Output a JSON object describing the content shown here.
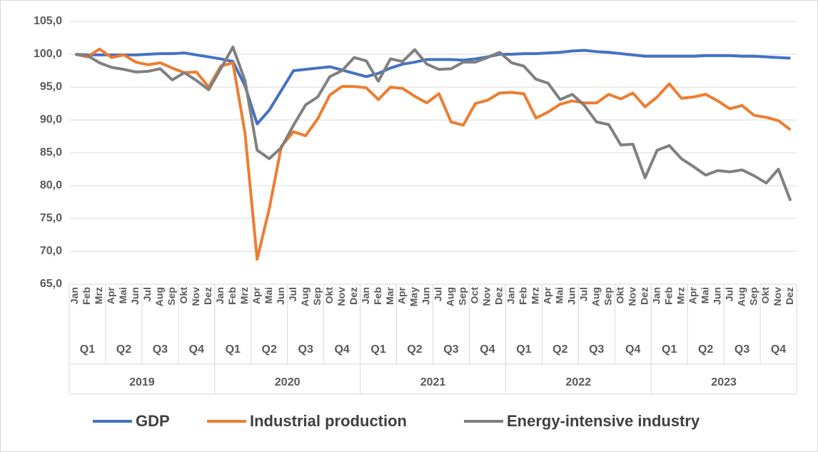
{
  "chart_data": {
    "type": "line",
    "categories": [
      "Jan",
      "Feb",
      "Mrz",
      "Apr",
      "Mai",
      "Jun",
      "Jul",
      "Aug",
      "Sep",
      "Okt",
      "Nov",
      "Dez",
      "Jan",
      "Feb",
      "Mrz",
      "Apr",
      "Mai",
      "Jun",
      "Jul",
      "Aug",
      "Sep",
      "Okt",
      "Nov",
      "Dez",
      "Jan",
      "Feb",
      "Mar",
      "Apr",
      "May",
      "Jun",
      "Jul",
      "Aug",
      "Sep",
      "Oct",
      "Nov",
      "Dez",
      "Jan",
      "Feb",
      "Mrz",
      "Apr",
      "Mai",
      "Jun",
      "Jul",
      "Aug",
      "Sep",
      "Okt",
      "Nov",
      "Dez",
      "Jan",
      "Feb",
      "Mrz",
      "Apr",
      "Mai",
      "Jun",
      "Jul",
      "Aug",
      "Sep",
      "Okt",
      "Nov",
      "Dez"
    ],
    "quarters": [
      "Q1",
      "Q2",
      "Q3",
      "Q4",
      "Q1",
      "Q2",
      "Q3",
      "Q4",
      "Q1",
      "Q2",
      "Q3",
      "Q4",
      "Q1",
      "Q2",
      "Q3",
      "Q4",
      "Q1",
      "Q2",
      "Q3",
      "Q4"
    ],
    "years": [
      "2019",
      "2020",
      "2021",
      "2022",
      "2023"
    ],
    "series": [
      {
        "name": "GDP",
        "color": "#4472c4",
        "values": [
          100,
          99.9,
          99.9,
          99.9,
          99.9,
          99.9,
          100,
          100.1,
          100.1,
          100.2,
          99.9,
          99.6,
          99.3,
          98.9,
          95.2,
          89.4,
          91.5,
          94.5,
          97.5,
          97.7,
          97.9,
          98.1,
          97.6,
          97.1,
          96.6,
          97.1,
          97.9,
          98.5,
          98.8,
          99.2,
          99.2,
          99.2,
          99.1,
          99.3,
          99.6,
          100,
          100,
          100.1,
          100.1,
          100.2,
          100.3,
          100.5,
          100.6,
          100.4,
          100.3,
          100.1,
          99.9,
          99.7,
          99.7,
          99.7,
          99.7,
          99.7,
          99.8,
          99.8,
          99.8,
          99.7,
          99.7,
          99.6,
          99.5,
          99.4
        ]
      },
      {
        "name": "Industrial production",
        "color": "#ed7d31",
        "values": [
          100,
          99.6,
          100.8,
          99.5,
          99.9,
          98.8,
          98.4,
          98.7,
          97.9,
          97.2,
          97.3,
          95.0,
          98.2,
          98.7,
          88.0,
          68.8,
          76.5,
          86.0,
          88.2,
          87.6,
          90.2,
          93.8,
          95.1,
          95.1,
          94.9,
          93.1,
          95.0,
          94.8,
          93.6,
          92.6,
          94.0,
          89.7,
          89.2,
          92.5,
          93.0,
          94.1,
          94.2,
          94.0,
          90.3,
          91.2,
          92.4,
          92.9,
          92.6,
          92.6,
          93.9,
          93.2,
          94.1,
          92.0,
          93.5,
          95.5,
          93.3,
          93.5,
          93.9,
          92.9,
          91.7,
          92.2,
          90.7,
          90.4,
          89.9,
          88.5
        ]
      },
      {
        "name": "Energy-intensive industry",
        "color": "#808080",
        "values": [
          100,
          99.8,
          98.7,
          98.0,
          97.7,
          97.3,
          97.4,
          97.8,
          96.1,
          97.2,
          96.0,
          94.6,
          97.8,
          101.1,
          96.0,
          85.4,
          84.1,
          85.8,
          89.2,
          92.3,
          93.5,
          96.6,
          97.5,
          99.5,
          99.0,
          95.9,
          99.3,
          98.9,
          100.7,
          98.5,
          97.7,
          97.8,
          98.8,
          98.8,
          99.5,
          100.3,
          98.7,
          98.2,
          96.2,
          95.6,
          93.1,
          93.9,
          92.2,
          89.7,
          89.3,
          86.2,
          86.3,
          81.2,
          85.4,
          86.1,
          84.1,
          82.9,
          81.6,
          82.3,
          82.1,
          82.4,
          81.5,
          80.4,
          82.5,
          77.7
        ]
      }
    ],
    "ylim": [
      65,
      105
    ],
    "yticks": [
      {
        "value": 65,
        "label": "65,0"
      },
      {
        "value": 70,
        "label": "70,0"
      },
      {
        "value": 75,
        "label": "75,0"
      },
      {
        "value": 80,
        "label": "80,0"
      },
      {
        "value": 85,
        "label": "85,0"
      },
      {
        "value": 90,
        "label": "90,0"
      },
      {
        "value": 95,
        "label": "95,0"
      },
      {
        "value": 100,
        "label": "100,0"
      },
      {
        "value": 105,
        "label": "105,0"
      }
    ],
    "grid": true,
    "legend": "bottom"
  }
}
